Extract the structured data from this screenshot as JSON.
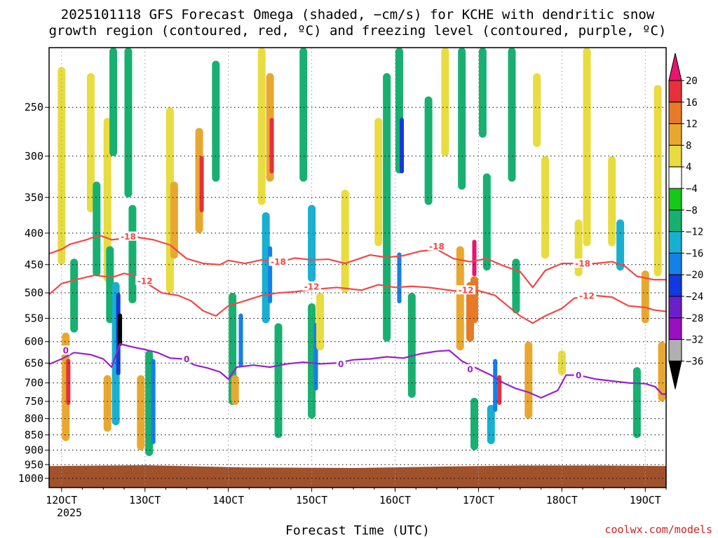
{
  "chart_data": {
    "type": "heatmap",
    "title": "2025101118 GFS Forecast Omega (shaded, −cm/s) for KCHE with dendritic snow",
    "subtitle": "growth region (contoured, red, ºC) and freezing level (contoured, purple, ºC)",
    "xlabel": "Forecast Time (UTC)",
    "ylabel": "",
    "x_ticks": [
      {
        "label": "12OCT",
        "day": 12
      },
      {
        "label": "13OCT",
        "day": 13
      },
      {
        "label": "14OCT",
        "day": 14
      },
      {
        "label": "15OCT",
        "day": 15
      },
      {
        "label": "16OCT",
        "day": 16
      },
      {
        "label": "17OCT",
        "day": 17
      },
      {
        "label": "18OCT",
        "day": 18
      },
      {
        "label": "19OCT",
        "day": 19
      }
    ],
    "x_year_label": "2025",
    "xlim": [
      11.85,
      19.25
    ],
    "y_ticks": [
      250,
      300,
      350,
      400,
      450,
      500,
      550,
      600,
      650,
      700,
      750,
      800,
      850,
      900,
      950,
      1000
    ],
    "ylim": [
      200,
      1035
    ],
    "y_scale": "log",
    "surface_color": "#a0522d",
    "surface_pressure": [
      {
        "x": 11.85,
        "p": 955
      },
      {
        "x": 13.0,
        "p": 952
      },
      {
        "x": 14.2,
        "p": 960
      },
      {
        "x": 15.5,
        "p": 962
      },
      {
        "x": 16.5,
        "p": 957
      },
      {
        "x": 17.5,
        "p": 953
      },
      {
        "x": 18.5,
        "p": 953
      },
      {
        "x": 19.25,
        "p": 955
      }
    ],
    "colorbar": {
      "levels": [
        "20",
        "16",
        "12",
        "8",
        "4",
        "−4",
        "−8",
        "−12",
        "−16",
        "−20",
        "−24",
        "−28",
        "−32",
        "−36"
      ],
      "colors": [
        "#e8146e",
        "#e8303a",
        "#e87a26",
        "#e8a830",
        "#e8dc40",
        "#ffffff",
        "#18c818",
        "#18b070",
        "#18b0d0",
        "#1480e8",
        "#1438e0",
        "#6a20c8",
        "#9a10c0",
        "#b0b0b0",
        "#000000"
      ]
    },
    "omega_cells": [
      {
        "x": 12.0,
        "p1": 215,
        "p2": 450,
        "v": 4
      },
      {
        "x": 12.05,
        "p1": 580,
        "p2": 870,
        "v": 8
      },
      {
        "x": 12.08,
        "p1": 640,
        "p2": 760,
        "v": 16
      },
      {
        "x": 12.15,
        "p1": 440,
        "p2": 580,
        "v": -8
      },
      {
        "x": 12.35,
        "p1": 220,
        "p2": 370,
        "v": 4
      },
      {
        "x": 12.42,
        "p1": 330,
        "p2": 470,
        "v": -8
      },
      {
        "x": 12.55,
        "p1": 260,
        "p2": 480,
        "v": 4
      },
      {
        "x": 12.58,
        "p1": 420,
        "p2": 560,
        "v": -8
      },
      {
        "x": 12.65,
        "p1": 480,
        "p2": 820,
        "v": -12
      },
      {
        "x": 12.68,
        "p1": 500,
        "p2": 680,
        "v": -20
      },
      {
        "x": 12.7,
        "p1": 540,
        "p2": 610,
        "v": -36
      },
      {
        "x": 12.55,
        "p1": 680,
        "p2": 840,
        "v": 8
      },
      {
        "x": 12.62,
        "p1": 200,
        "p2": 300,
        "v": -8
      },
      {
        "x": 12.8,
        "p1": 200,
        "p2": 350,
        "v": -8
      },
      {
        "x": 12.85,
        "p1": 360,
        "p2": 520,
        "v": -8
      },
      {
        "x": 13.05,
        "p1": 620,
        "p2": 920,
        "v": -8
      },
      {
        "x": 13.1,
        "p1": 640,
        "p2": 880,
        "v": -16
      },
      {
        "x": 12.95,
        "p1": 680,
        "p2": 900,
        "v": 8
      },
      {
        "x": 13.3,
        "p1": 250,
        "p2": 500,
        "v": 4
      },
      {
        "x": 13.35,
        "p1": 330,
        "p2": 440,
        "v": 8
      },
      {
        "x": 13.65,
        "p1": 270,
        "p2": 400,
        "v": 8
      },
      {
        "x": 13.68,
        "p1": 300,
        "p2": 370,
        "v": 16
      },
      {
        "x": 13.85,
        "p1": 210,
        "p2": 330,
        "v": -8
      },
      {
        "x": 14.05,
        "p1": 500,
        "p2": 760,
        "v": -8
      },
      {
        "x": 14.15,
        "p1": 540,
        "p2": 660,
        "v": -16
      },
      {
        "x": 14.08,
        "p1": 680,
        "p2": 760,
        "v": 8
      },
      {
        "x": 14.4,
        "p1": 200,
        "p2": 360,
        "v": 4
      },
      {
        "x": 14.5,
        "p1": 220,
        "p2": 330,
        "v": 8
      },
      {
        "x": 14.52,
        "p1": 260,
        "p2": 320,
        "v": 16
      },
      {
        "x": 14.45,
        "p1": 370,
        "p2": 560,
        "v": -12
      },
      {
        "x": 14.5,
        "p1": 420,
        "p2": 520,
        "v": -16
      },
      {
        "x": 14.6,
        "p1": 560,
        "p2": 860,
        "v": -8
      },
      {
        "x": 14.9,
        "p1": 200,
        "p2": 330,
        "v": -8
      },
      {
        "x": 15.0,
        "p1": 360,
        "p2": 480,
        "v": -12
      },
      {
        "x": 15.0,
        "p1": 520,
        "p2": 800,
        "v": -8
      },
      {
        "x": 15.05,
        "p1": 560,
        "p2": 720,
        "v": -16
      },
      {
        "x": 15.1,
        "p1": 500,
        "p2": 620,
        "v": 4
      },
      {
        "x": 15.4,
        "p1": 340,
        "p2": 500,
        "v": 4
      },
      {
        "x": 15.8,
        "p1": 260,
        "p2": 420,
        "v": 4
      },
      {
        "x": 15.9,
        "p1": 220,
        "p2": 600,
        "v": -8
      },
      {
        "x": 16.05,
        "p1": 200,
        "p2": 320,
        "v": -8
      },
      {
        "x": 16.08,
        "p1": 260,
        "p2": 320,
        "v": -20
      },
      {
        "x": 16.05,
        "p1": 430,
        "p2": 520,
        "v": -16
      },
      {
        "x": 16.2,
        "p1": 500,
        "p2": 740,
        "v": -8
      },
      {
        "x": 16.4,
        "p1": 240,
        "p2": 360,
        "v": -8
      },
      {
        "x": 16.6,
        "p1": 200,
        "p2": 300,
        "v": 4
      },
      {
        "x": 16.8,
        "p1": 200,
        "p2": 340,
        "v": -8
      },
      {
        "x": 16.78,
        "p1": 420,
        "p2": 620,
        "v": 8
      },
      {
        "x": 16.9,
        "p1": 480,
        "p2": 600,
        "v": 12
      },
      {
        "x": 16.95,
        "p1": 410,
        "p2": 470,
        "v": 20
      },
      {
        "x": 16.95,
        "p1": 470,
        "p2": 560,
        "v": 12
      },
      {
        "x": 16.95,
        "p1": 740,
        "p2": 900,
        "v": -8
      },
      {
        "x": 17.05,
        "p1": 200,
        "p2": 280,
        "v": -8
      },
      {
        "x": 17.1,
        "p1": 320,
        "p2": 460,
        "v": -8
      },
      {
        "x": 17.15,
        "p1": 760,
        "p2": 880,
        "v": -12
      },
      {
        "x": 17.2,
        "p1": 640,
        "p2": 780,
        "v": -16
      },
      {
        "x": 17.25,
        "p1": 680,
        "p2": 760,
        "v": 16
      },
      {
        "x": 17.4,
        "p1": 200,
        "p2": 330,
        "v": -8
      },
      {
        "x": 17.45,
        "p1": 440,
        "p2": 540,
        "v": -8
      },
      {
        "x": 17.6,
        "p1": 600,
        "p2": 800,
        "v": 8
      },
      {
        "x": 17.7,
        "p1": 220,
        "p2": 290,
        "v": 4
      },
      {
        "x": 17.8,
        "p1": 300,
        "p2": 440,
        "v": 4
      },
      {
        "x": 18.0,
        "p1": 620,
        "p2": 680,
        "v": 4
      },
      {
        "x": 18.2,
        "p1": 380,
        "p2": 470,
        "v": 4
      },
      {
        "x": 18.3,
        "p1": 200,
        "p2": 420,
        "v": 4
      },
      {
        "x": 18.6,
        "p1": 300,
        "p2": 420,
        "v": 4
      },
      {
        "x": 18.7,
        "p1": 380,
        "p2": 460,
        "v": -12
      },
      {
        "x": 18.9,
        "p1": 660,
        "p2": 860,
        "v": -8
      },
      {
        "x": 19.0,
        "p1": 460,
        "p2": 560,
        "v": 8
      },
      {
        "x": 19.15,
        "p1": 230,
        "p2": 470,
        "v": 4
      },
      {
        "x": 19.2,
        "p1": 600,
        "p2": 750,
        "v": 8
      }
    ],
    "contours": [
      {
        "name": "-18",
        "color": "#f04848",
        "labels": [
          {
            "x": 12.8,
            "p": 405
          },
          {
            "x": 14.6,
            "p": 445
          },
          {
            "x": 16.5,
            "p": 420
          },
          {
            "x": 18.25,
            "p": 448
          }
        ],
        "points": [
          {
            "x": 11.85,
            "p": 432
          },
          {
            "x": 12.0,
            "p": 425
          },
          {
            "x": 12.1,
            "p": 417
          },
          {
            "x": 12.3,
            "p": 410
          },
          {
            "x": 12.45,
            "p": 403
          },
          {
            "x": 12.6,
            "p": 410
          },
          {
            "x": 12.75,
            "p": 408
          },
          {
            "x": 12.9,
            "p": 406
          },
          {
            "x": 13.1,
            "p": 410
          },
          {
            "x": 13.3,
            "p": 418
          },
          {
            "x": 13.5,
            "p": 440
          },
          {
            "x": 13.7,
            "p": 448
          },
          {
            "x": 13.9,
            "p": 450
          },
          {
            "x": 14.0,
            "p": 443
          },
          {
            "x": 14.2,
            "p": 448
          },
          {
            "x": 14.4,
            "p": 442
          },
          {
            "x": 14.6,
            "p": 446
          },
          {
            "x": 14.8,
            "p": 439
          },
          {
            "x": 15.0,
            "p": 442
          },
          {
            "x": 15.2,
            "p": 441
          },
          {
            "x": 15.4,
            "p": 448
          },
          {
            "x": 15.7,
            "p": 434
          },
          {
            "x": 15.9,
            "p": 438
          },
          {
            "x": 16.1,
            "p": 435
          },
          {
            "x": 16.3,
            "p": 428
          },
          {
            "x": 16.5,
            "p": 425
          },
          {
            "x": 16.7,
            "p": 440
          },
          {
            "x": 16.9,
            "p": 445
          },
          {
            "x": 17.1,
            "p": 440
          },
          {
            "x": 17.3,
            "p": 452
          },
          {
            "x": 17.5,
            "p": 462
          },
          {
            "x": 17.65,
            "p": 490
          },
          {
            "x": 17.8,
            "p": 460
          },
          {
            "x": 18.0,
            "p": 448
          },
          {
            "x": 18.2,
            "p": 448
          },
          {
            "x": 18.4,
            "p": 448
          },
          {
            "x": 18.6,
            "p": 445
          },
          {
            "x": 18.75,
            "p": 452
          },
          {
            "x": 18.9,
            "p": 470
          },
          {
            "x": 19.1,
            "p": 476
          },
          {
            "x": 19.25,
            "p": 476
          }
        ]
      },
      {
        "name": "-12",
        "color": "#f04848",
        "labels": [
          {
            "x": 13.0,
            "p": 478
          },
          {
            "x": 15.0,
            "p": 488
          },
          {
            "x": 16.85,
            "p": 495
          },
          {
            "x": 18.3,
            "p": 505
          }
        ],
        "points": [
          {
            "x": 11.85,
            "p": 503
          },
          {
            "x": 12.0,
            "p": 483
          },
          {
            "x": 12.2,
            "p": 475
          },
          {
            "x": 12.4,
            "p": 468
          },
          {
            "x": 12.6,
            "p": 472
          },
          {
            "x": 12.75,
            "p": 465
          },
          {
            "x": 12.9,
            "p": 470
          },
          {
            "x": 13.05,
            "p": 485
          },
          {
            "x": 13.2,
            "p": 500
          },
          {
            "x": 13.4,
            "p": 505
          },
          {
            "x": 13.55,
            "p": 515
          },
          {
            "x": 13.7,
            "p": 535
          },
          {
            "x": 13.85,
            "p": 545
          },
          {
            "x": 14.0,
            "p": 525
          },
          {
            "x": 14.2,
            "p": 515
          },
          {
            "x": 14.4,
            "p": 505
          },
          {
            "x": 14.6,
            "p": 500
          },
          {
            "x": 14.8,
            "p": 498
          },
          {
            "x": 15.0,
            "p": 494
          },
          {
            "x": 15.3,
            "p": 490
          },
          {
            "x": 15.6,
            "p": 495
          },
          {
            "x": 15.8,
            "p": 485
          },
          {
            "x": 16.0,
            "p": 490
          },
          {
            "x": 16.2,
            "p": 488
          },
          {
            "x": 16.4,
            "p": 490
          },
          {
            "x": 16.6,
            "p": 494
          },
          {
            "x": 16.8,
            "p": 498
          },
          {
            "x": 17.0,
            "p": 496
          },
          {
            "x": 17.2,
            "p": 505
          },
          {
            "x": 17.35,
            "p": 525
          },
          {
            "x": 17.5,
            "p": 545
          },
          {
            "x": 17.65,
            "p": 560
          },
          {
            "x": 17.8,
            "p": 545
          },
          {
            "x": 18.0,
            "p": 530
          },
          {
            "x": 18.15,
            "p": 510
          },
          {
            "x": 18.4,
            "p": 505
          },
          {
            "x": 18.6,
            "p": 508
          },
          {
            "x": 18.8,
            "p": 525
          },
          {
            "x": 19.0,
            "p": 528
          },
          {
            "x": 19.1,
            "p": 533
          },
          {
            "x": 19.25,
            "p": 536
          }
        ]
      },
      {
        "name": "0",
        "color": "#9a20c8",
        "labels": [
          {
            "x": 12.05,
            "p": 620
          },
          {
            "x": 13.5,
            "p": 640
          },
          {
            "x": 15.35,
            "p": 652
          },
          {
            "x": 16.9,
            "p": 665
          },
          {
            "x": 18.2,
            "p": 680
          }
        ],
        "points": [
          {
            "x": 11.85,
            "p": 653
          },
          {
            "x": 12.0,
            "p": 640
          },
          {
            "x": 12.15,
            "p": 625
          },
          {
            "x": 12.35,
            "p": 630
          },
          {
            "x": 12.5,
            "p": 640
          },
          {
            "x": 12.6,
            "p": 660
          },
          {
            "x": 12.7,
            "p": 605
          },
          {
            "x": 12.85,
            "p": 612
          },
          {
            "x": 13.0,
            "p": 618
          },
          {
            "x": 13.15,
            "p": 625
          },
          {
            "x": 13.3,
            "p": 638
          },
          {
            "x": 13.45,
            "p": 640
          },
          {
            "x": 13.6,
            "p": 655
          },
          {
            "x": 13.75,
            "p": 662
          },
          {
            "x": 13.9,
            "p": 672
          },
          {
            "x": 14.0,
            "p": 690
          },
          {
            "x": 14.1,
            "p": 660
          },
          {
            "x": 14.3,
            "p": 655
          },
          {
            "x": 14.5,
            "p": 660
          },
          {
            "x": 14.7,
            "p": 652
          },
          {
            "x": 14.9,
            "p": 648
          },
          {
            "x": 15.1,
            "p": 652
          },
          {
            "x": 15.3,
            "p": 650
          },
          {
            "x": 15.5,
            "p": 642
          },
          {
            "x": 15.7,
            "p": 640
          },
          {
            "x": 15.9,
            "p": 635
          },
          {
            "x": 16.1,
            "p": 638
          },
          {
            "x": 16.3,
            "p": 628
          },
          {
            "x": 16.5,
            "p": 622
          },
          {
            "x": 16.65,
            "p": 620
          },
          {
            "x": 16.8,
            "p": 645
          },
          {
            "x": 17.0,
            "p": 665
          },
          {
            "x": 17.15,
            "p": 680
          },
          {
            "x": 17.3,
            "p": 700
          },
          {
            "x": 17.45,
            "p": 715
          },
          {
            "x": 17.6,
            "p": 725
          },
          {
            "x": 17.75,
            "p": 740
          },
          {
            "x": 17.95,
            "p": 720
          },
          {
            "x": 18.05,
            "p": 680
          },
          {
            "x": 18.2,
            "p": 680
          },
          {
            "x": 18.4,
            "p": 690
          },
          {
            "x": 18.6,
            "p": 695
          },
          {
            "x": 18.8,
            "p": 700
          },
          {
            "x": 19.0,
            "p": 702
          },
          {
            "x": 19.12,
            "p": 710
          },
          {
            "x": 19.2,
            "p": 730
          },
          {
            "x": 19.25,
            "p": 730
          }
        ]
      }
    ]
  },
  "credit": "coolwx.com/models"
}
